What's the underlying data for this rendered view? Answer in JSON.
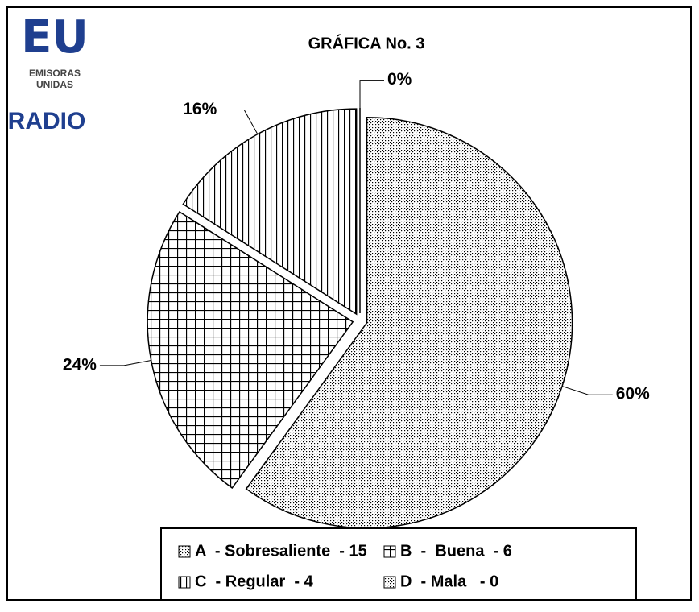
{
  "logo": {
    "mark": "EU",
    "line1": "EMISORAS",
    "line2": "UNIDAS",
    "sub": "RADIO"
  },
  "chart_data": {
    "type": "pie",
    "title": "GRÁFICA No. 3",
    "categories": [
      "A  - Sobresaliente  - 15",
      "B  -  Buena  - 6",
      "C  - Regular  - 4",
      "D  - Mala   - 0"
    ],
    "values": [
      60,
      24,
      16,
      0
    ],
    "value_labels": [
      "60%",
      "24%",
      "16%",
      "0%"
    ],
    "patterns": [
      "dots",
      "grid",
      "vertical",
      "dots"
    ],
    "color": "#000000",
    "start_angle": 0,
    "direction": "clockwise",
    "exploded": true,
    "legend": "bottom"
  }
}
